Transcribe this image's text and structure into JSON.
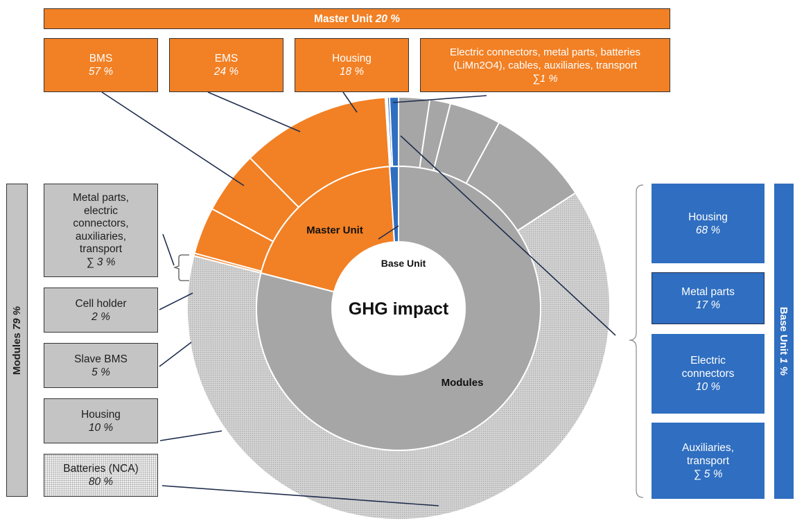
{
  "center_label": "GHG impact",
  "inner_labels": {
    "master_unit": "Master Unit",
    "base_unit": "Base Unit",
    "modules": "Modules"
  },
  "master_unit": {
    "header": "Master Unit",
    "header_pct": "20 %",
    "items": [
      {
        "label": "BMS",
        "pct": "57 %"
      },
      {
        "label": "EMS",
        "pct": "24 %"
      },
      {
        "label": "Housing",
        "pct": "18 %"
      },
      {
        "label_line1": "Electric connectors, metal parts, batteries",
        "label_line2": "(LiMn2O4), cables, auxiliaries, transport",
        "pct": "∑1 %"
      }
    ]
  },
  "modules": {
    "header": "Modules",
    "header_pct": "79 %",
    "items": [
      {
        "label_lines": [
          "Metal parts,",
          "electric",
          "connectors,",
          "auxiliaries,",
          "transport"
        ],
        "pct": "∑ 3 %"
      },
      {
        "label": "Cell holder",
        "pct": "2 %"
      },
      {
        "label": "Slave BMS",
        "pct": "5 %"
      },
      {
        "label": "Housing",
        "pct": "10 %"
      },
      {
        "label": "Batteries (NCA)",
        "pct": "80 %"
      }
    ]
  },
  "base_unit": {
    "header": "Base Unit",
    "header_pct": "1 %",
    "items": [
      {
        "label": "Housing",
        "pct": "68 %"
      },
      {
        "label": "Metal parts",
        "pct": "17 %"
      },
      {
        "label_lines": [
          "Electric",
          "connectors"
        ],
        "pct": "10 %"
      },
      {
        "label_lines": [
          "Auxiliaries,",
          "transport"
        ],
        "pct": "∑ 5 %"
      }
    ]
  },
  "colors": {
    "master_unit": "#f28024",
    "base_unit": "#2f6ec0",
    "modules": "#a6a6a6",
    "module_batteries_fill": "#d4d4d4",
    "module_batteries_dots": "#a9a9a9",
    "lines": "#1f2d4d"
  },
  "chart_data": {
    "type": "pie",
    "subtype": "sunburst",
    "title": "GHG impact",
    "inner_ring": [
      {
        "name": "Modules",
        "value": 79
      },
      {
        "name": "Master Unit",
        "value": 20
      },
      {
        "name": "Base Unit",
        "value": 1
      }
    ],
    "outer_ring": [
      {
        "parent": "Master Unit",
        "name": "BMS",
        "value": 57
      },
      {
        "parent": "Master Unit",
        "name": "EMS",
        "value": 24
      },
      {
        "parent": "Master Unit",
        "name": "Housing",
        "value": 18
      },
      {
        "parent": "Master Unit",
        "name": "Electric connectors, metal parts, batteries (LiMn2O4), cables, auxiliaries, transport",
        "value": 1
      },
      {
        "parent": "Base Unit",
        "name": "Housing",
        "value": 68
      },
      {
        "parent": "Base Unit",
        "name": "Metal parts",
        "value": 17
      },
      {
        "parent": "Base Unit",
        "name": "Electric connectors",
        "value": 10
      },
      {
        "parent": "Base Unit",
        "name": "Auxiliaries, transport",
        "value": 5
      },
      {
        "parent": "Modules",
        "name": "Batteries (NCA)",
        "value": 80
      },
      {
        "parent": "Modules",
        "name": "Housing",
        "value": 10
      },
      {
        "parent": "Modules",
        "name": "Slave BMS",
        "value": 5
      },
      {
        "parent": "Modules",
        "name": "Cell holder",
        "value": 2
      },
      {
        "parent": "Modules",
        "name": "Metal parts, electric connectors, auxiliaries, transport",
        "value": 3
      }
    ]
  }
}
